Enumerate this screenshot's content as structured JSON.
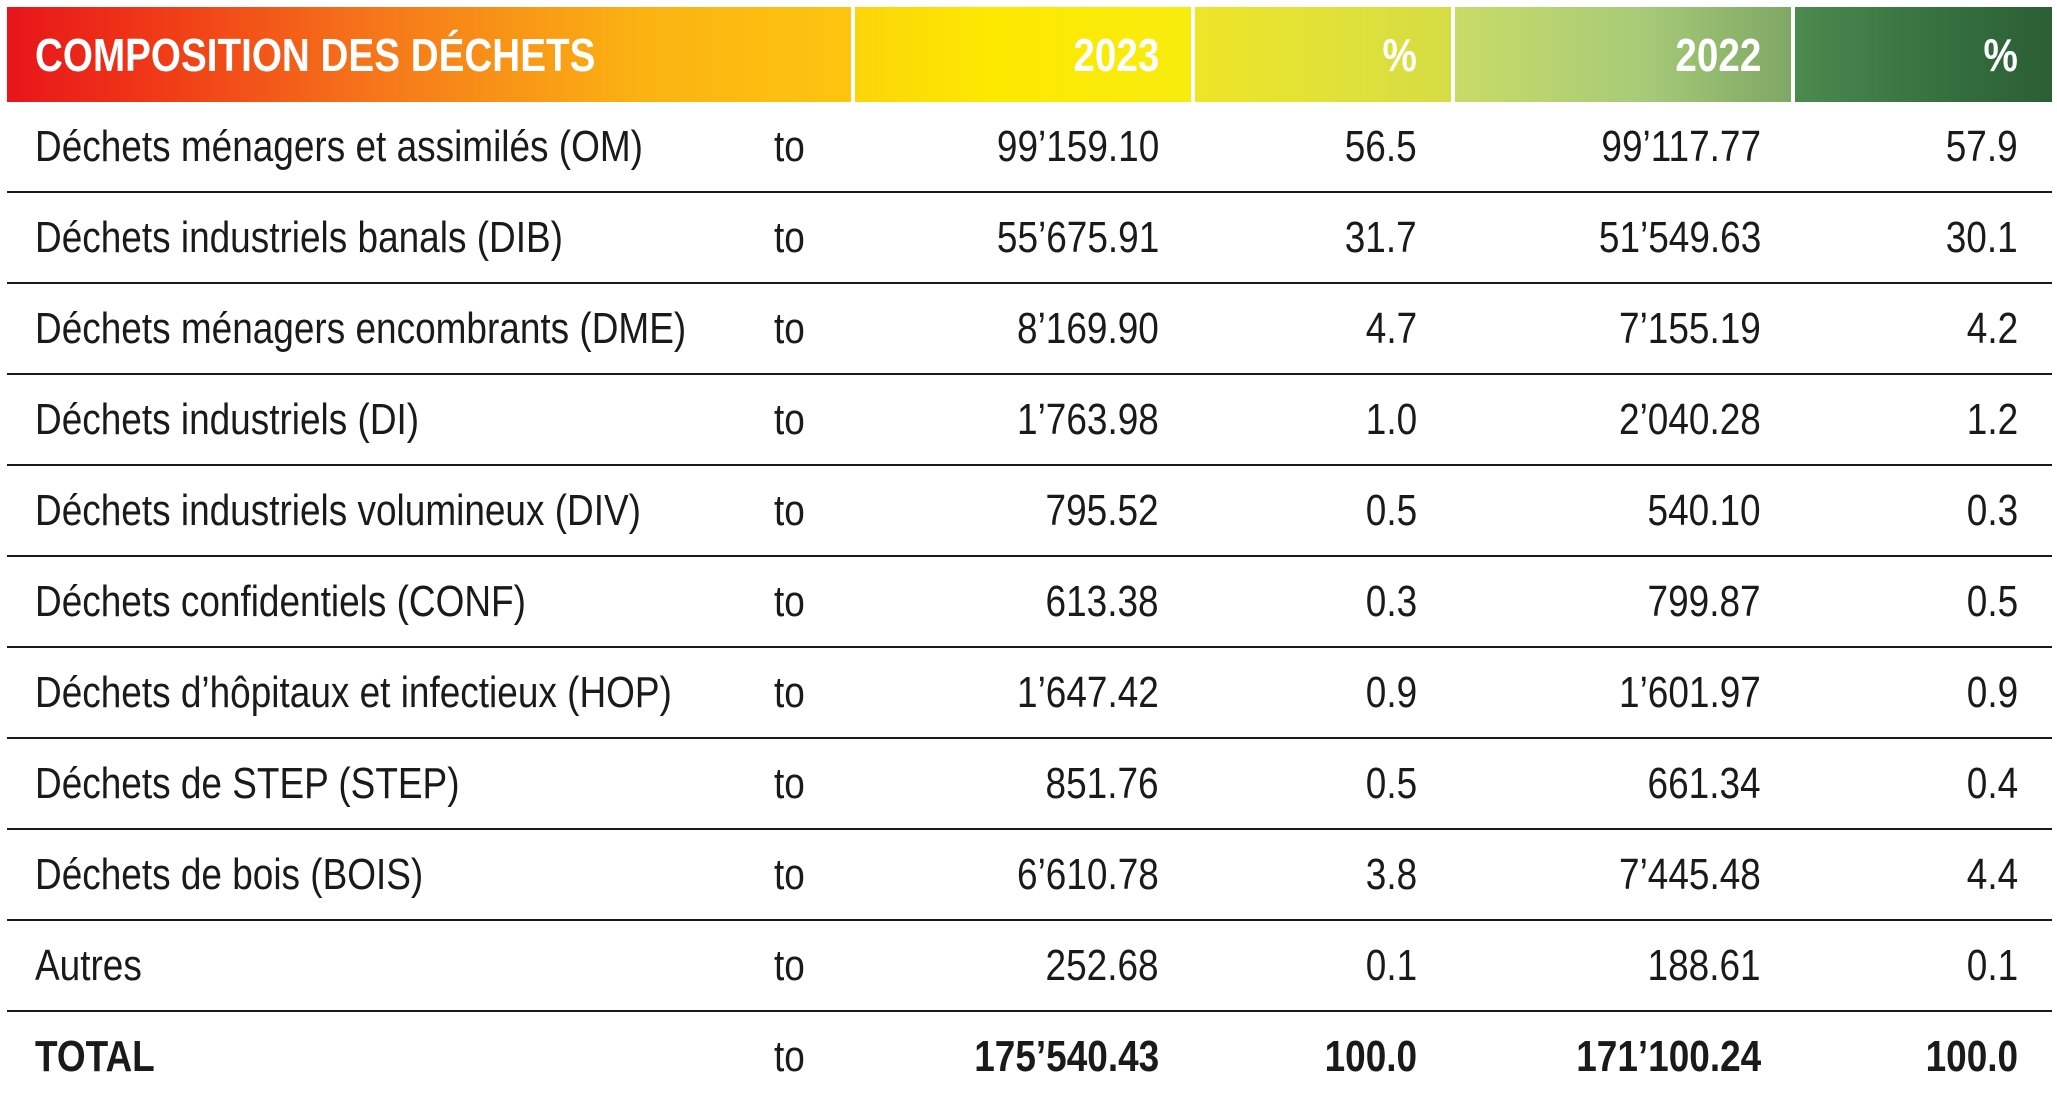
{
  "header": {
    "title": "COMPOSITION DES DÉCHETS",
    "year_2023": "2023",
    "pct_2023": "%",
    "year_2022": "2022",
    "pct_2022": "%"
  },
  "rows": [
    {
      "label": "Déchets ménagers et assimilés (OM)",
      "unit": "to",
      "v2023": "99’159.10",
      "p2023": "56.5",
      "v2022": "99’117.77",
      "p2022": "57.9"
    },
    {
      "label": "Déchets industriels banals (DIB)",
      "unit": "to",
      "v2023": "55’675.91",
      "p2023": "31.7",
      "v2022": "51’549.63",
      "p2022": "30.1"
    },
    {
      "label": "Déchets ménagers encombrants (DME)",
      "unit": "to",
      "v2023": "8’169.90",
      "p2023": "4.7",
      "v2022": "7’155.19",
      "p2022": "4.2"
    },
    {
      "label": "Déchets industriels (DI)",
      "unit": "to",
      "v2023": "1’763.98",
      "p2023": "1.0",
      "v2022": "2’040.28",
      "p2022": "1.2"
    },
    {
      "label": "Déchets industriels volumineux (DIV)",
      "unit": "to",
      "v2023": "795.52",
      "p2023": "0.5",
      "v2022": "540.10",
      "p2022": "0.3"
    },
    {
      "label": "Déchets confidentiels (CONF)",
      "unit": "to",
      "v2023": "613.38",
      "p2023": "0.3",
      "v2022": "799.87",
      "p2022": "0.5"
    },
    {
      "label": "Déchets d’hôpitaux et infectieux (HOP)",
      "unit": "to",
      "v2023": "1’647.42",
      "p2023": "0.9",
      "v2022": "1’601.97",
      "p2022": "0.9"
    },
    {
      "label": "Déchets de STEP (STEP)",
      "unit": "to",
      "v2023": "851.76",
      "p2023": "0.5",
      "v2022": "661.34",
      "p2022": "0.4"
    },
    {
      "label": "Déchets de bois (BOIS)",
      "unit": "to",
      "v2023": "6’610.78",
      "p2023": "3.8",
      "v2022": "7’445.48",
      "p2022": "4.4"
    },
    {
      "label": "Autres",
      "unit": "to",
      "v2023": "252.68",
      "p2023": "0.1",
      "v2022": "188.61",
      "p2022": "0.1"
    }
  ],
  "total": {
    "label": "TOTAL",
    "unit": "to",
    "v2023": "175’540.43",
    "p2023": "100.0",
    "v2022": "171’100.24",
    "p2022": "100.0"
  },
  "colors": {
    "header_start": "#e8141b",
    "header_mid": "#fde800",
    "header_end": "#2b5e34",
    "text": "#1a1a1a",
    "rule": "#1a1a1a"
  }
}
